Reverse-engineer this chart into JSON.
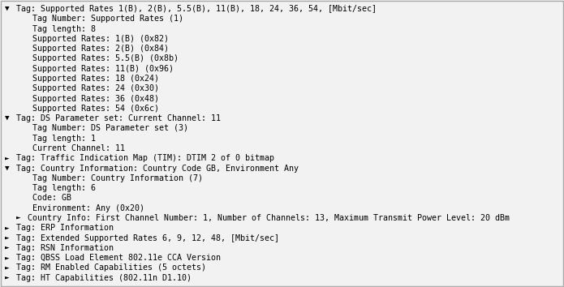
{
  "bg_color": "#f2f2f2",
  "border_color": "#aaaaaa",
  "font_size": 7.2,
  "text_color": "#000000",
  "lines": [
    {
      "indent": 0,
      "marker": "v",
      "text": "Tag: Supported Rates 1(B), 2(B), 5.5(B), 11(B), 18, 24, 36, 54, [Mbit/sec]"
    },
    {
      "indent": 1,
      "marker": "",
      "text": "Tag Number: Supported Rates (1)"
    },
    {
      "indent": 1,
      "marker": "",
      "text": "Tag length: 8"
    },
    {
      "indent": 1,
      "marker": "",
      "text": "Supported Rates: 1(B) (0x82)"
    },
    {
      "indent": 1,
      "marker": "",
      "text": "Supported Rates: 2(B) (0x84)"
    },
    {
      "indent": 1,
      "marker": "",
      "text": "Supported Rates: 5.5(B) (0x8b)"
    },
    {
      "indent": 1,
      "marker": "",
      "text": "Supported Rates: 11(B) (0x96)"
    },
    {
      "indent": 1,
      "marker": "",
      "text": "Supported Rates: 18 (0x24)"
    },
    {
      "indent": 1,
      "marker": "",
      "text": "Supported Rates: 24 (0x30)"
    },
    {
      "indent": 1,
      "marker": "",
      "text": "Supported Rates: 36 (0x48)"
    },
    {
      "indent": 1,
      "marker": "",
      "text": "Supported Rates: 54 (0x6c)"
    },
    {
      "indent": 0,
      "marker": "v",
      "text": "Tag: DS Parameter set: Current Channel: 11"
    },
    {
      "indent": 1,
      "marker": "",
      "text": "Tag Number: DS Parameter set (3)"
    },
    {
      "indent": 1,
      "marker": "",
      "text": "Tag length: 1"
    },
    {
      "indent": 1,
      "marker": "",
      "text": "Current Channel: 11"
    },
    {
      "indent": 0,
      "marker": "r",
      "text": "Tag: Traffic Indication Map (TIM): DTIM 2 of 0 bitmap"
    },
    {
      "indent": 0,
      "marker": "v",
      "text": "Tag: Country Information: Country Code GB, Environment Any"
    },
    {
      "indent": 1,
      "marker": "",
      "text": "Tag Number: Country Information (7)"
    },
    {
      "indent": 1,
      "marker": "",
      "text": "Tag length: 6"
    },
    {
      "indent": 1,
      "marker": "",
      "text": "Code: GB"
    },
    {
      "indent": 1,
      "marker": "",
      "text": "Environment: Any (0x20)"
    },
    {
      "indent": 1,
      "marker": "r",
      "text": "Country Info: First Channel Number: 1, Number of Channels: 13, Maximum Transmit Power Level: 20 dBm"
    },
    {
      "indent": 0,
      "marker": "r",
      "text": "Tag: ERP Information"
    },
    {
      "indent": 0,
      "marker": "r",
      "text": "Tag: Extended Supported Rates 6, 9, 12, 48, [Mbit/sec]"
    },
    {
      "indent": 0,
      "marker": "r",
      "text": "Tag: RSN Information"
    },
    {
      "indent": 0,
      "marker": "r",
      "text": "Tag: QBSS Load Element 802.11e CCA Version"
    },
    {
      "indent": 0,
      "marker": "r",
      "text": "Tag: RM Enabled Capabilities (5 octets)"
    },
    {
      "indent": 0,
      "marker": "r",
      "text": "Tag: HT Capabilities (802.11n D1.10)"
    }
  ]
}
